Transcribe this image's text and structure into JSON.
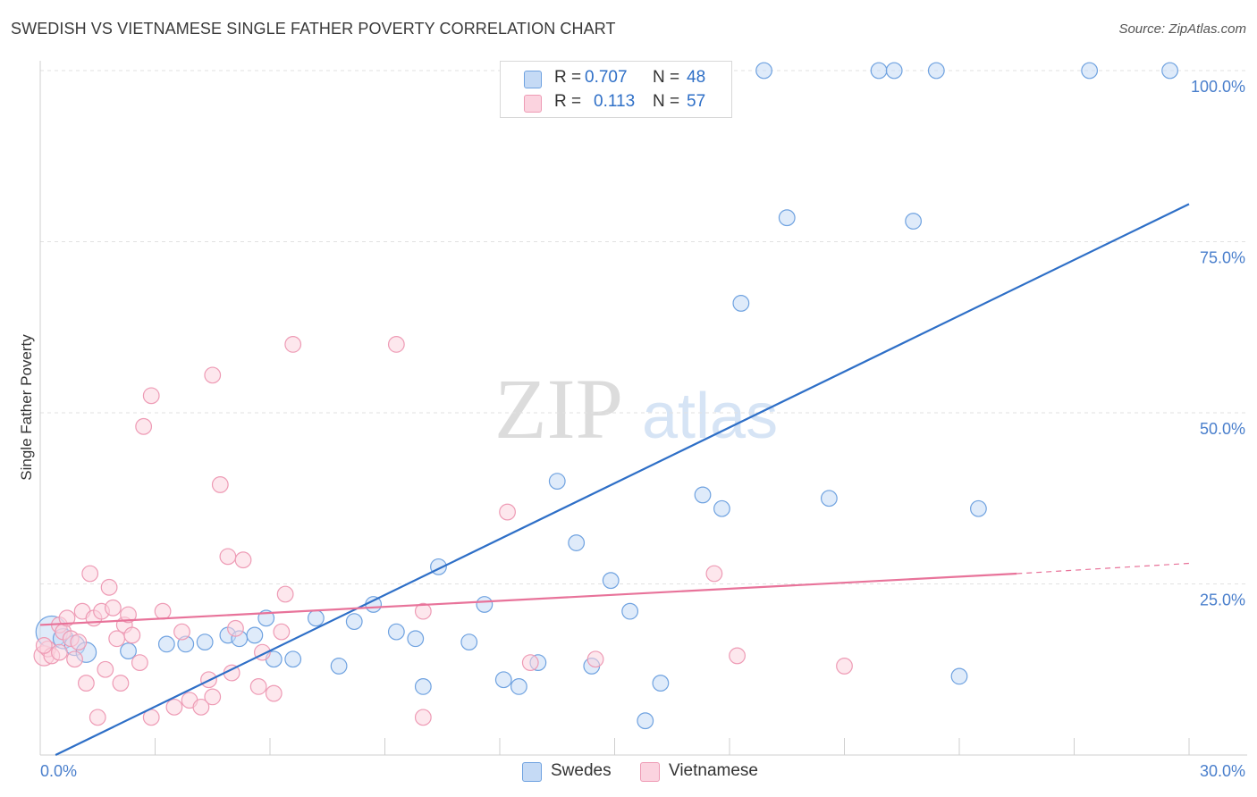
{
  "header": {
    "title": "SWEDISH VS VIETNAMESE SINGLE FATHER POVERTY CORRELATION CHART",
    "source": "Source: ZipAtlas.com"
  },
  "watermark": {
    "zip": "ZIP",
    "atlas": "atlas"
  },
  "legend": {
    "rows": [
      {
        "r_label": "R =",
        "r_value": "0.707",
        "n_label": "N =",
        "n_value": "48",
        "color": "#a9c8f0"
      },
      {
        "r_label": "R =",
        "r_value": "0.113",
        "n_label": "N =",
        "n_value": "57",
        "color": "#f7b6c8"
      }
    ]
  },
  "bottom_legend": [
    {
      "label": "Swedes",
      "color": "#a9c8f0"
    },
    {
      "label": "Vietnamese",
      "color": "#f7b6c8"
    }
  ],
  "chart_data": {
    "type": "scatter",
    "title": "SWEDISH VS VIETNAMESE SINGLE FATHER POVERTY CORRELATION CHART",
    "ylabel": "Single Father Poverty",
    "xlabel": "",
    "xlim": [
      0,
      30
    ],
    "ylim": [
      0,
      100
    ],
    "x_tick_labels": [
      "0.0%",
      "30.0%"
    ],
    "y_ticks": [
      25,
      50,
      75,
      100
    ],
    "y_tick_labels": [
      "25.0%",
      "50.0%",
      "75.0%",
      "100.0%"
    ],
    "grid": "horizontal dashed",
    "legend_position": "top-center",
    "series": [
      {
        "name": "Swedes",
        "color": "#6fa2e0",
        "fill": "#c5daf5",
        "trend_color": "#2e6fc7",
        "trend": {
          "x0": 0.4,
          "y0": 0.0,
          "x1": 30.0,
          "y1": 80.5
        },
        "points": [
          [
            0.3,
            18.0,
            22
          ],
          [
            0.6,
            17.0,
            14
          ],
          [
            0.9,
            16.0,
            14
          ],
          [
            1.2,
            15.0,
            14
          ],
          [
            2.3,
            15.2,
            11
          ],
          [
            3.3,
            16.2,
            11
          ],
          [
            3.8,
            16.2,
            11
          ],
          [
            4.3,
            16.5,
            11
          ],
          [
            4.9,
            17.5,
            11
          ],
          [
            5.6,
            17.5,
            11
          ],
          [
            5.2,
            17.0,
            11
          ],
          [
            5.9,
            20.0,
            11
          ],
          [
            6.1,
            14.0,
            11
          ],
          [
            6.6,
            14.0,
            11
          ],
          [
            7.2,
            20.0,
            11
          ],
          [
            7.8,
            13.0,
            11
          ],
          [
            8.2,
            19.5,
            11
          ],
          [
            8.7,
            22.0,
            11
          ],
          [
            9.3,
            18.0,
            11
          ],
          [
            9.8,
            17.0,
            11
          ],
          [
            10.0,
            10.0,
            11
          ],
          [
            10.4,
            27.5,
            11
          ],
          [
            11.2,
            16.5,
            11
          ],
          [
            11.6,
            22.0,
            11
          ],
          [
            12.1,
            11.0,
            11
          ],
          [
            12.5,
            10.0,
            11
          ],
          [
            13.0,
            13.5,
            11
          ],
          [
            13.5,
            40.0,
            11
          ],
          [
            14.0,
            31.0,
            11
          ],
          [
            14.4,
            13.0,
            11
          ],
          [
            14.9,
            25.5,
            11
          ],
          [
            15.4,
            21.0,
            11
          ],
          [
            15.8,
            5.0,
            11
          ],
          [
            16.2,
            10.5,
            11
          ],
          [
            17.3,
            38.0,
            11
          ],
          [
            17.8,
            36.0,
            11
          ],
          [
            18.3,
            66.0,
            11
          ],
          [
            18.9,
            100.0,
            11
          ],
          [
            19.5,
            78.5,
            11
          ],
          [
            20.6,
            37.5,
            11
          ],
          [
            21.9,
            100.0,
            11
          ],
          [
            22.3,
            100.0,
            11
          ],
          [
            22.8,
            78.0,
            11
          ],
          [
            23.4,
            100.0,
            11
          ],
          [
            24.0,
            11.5,
            11
          ],
          [
            24.5,
            36.0,
            11
          ],
          [
            27.4,
            100.0,
            11
          ],
          [
            29.5,
            100.0,
            11
          ]
        ]
      },
      {
        "name": "Vietnamese",
        "color": "#ee9bb5",
        "fill": "#fbd3df",
        "trend_color": "#e8739a",
        "trend": {
          "x0": 0.0,
          "y0": 19.0,
          "x1": 25.5,
          "y1": 26.5,
          "dash_to_x": 30.0,
          "dash_to_y": 28.0
        },
        "points": [
          [
            0.1,
            14.5,
            14
          ],
          [
            0.2,
            15.5,
            11
          ],
          [
            0.3,
            14.5,
            11
          ],
          [
            0.5,
            15.0,
            11
          ],
          [
            0.5,
            19.0,
            11
          ],
          [
            0.6,
            18.0,
            11
          ],
          [
            0.7,
            20.0,
            11
          ],
          [
            0.8,
            17.0,
            11
          ],
          [
            0.9,
            14.0,
            11
          ],
          [
            1.0,
            16.5,
            11
          ],
          [
            1.1,
            21.0,
            11
          ],
          [
            1.2,
            10.5,
            11
          ],
          [
            1.3,
            26.5,
            11
          ],
          [
            1.4,
            20.0,
            11
          ],
          [
            1.5,
            5.5,
            11
          ],
          [
            1.6,
            21.0,
            11
          ],
          [
            1.7,
            12.5,
            11
          ],
          [
            1.8,
            24.5,
            11
          ],
          [
            1.9,
            21.5,
            11
          ],
          [
            2.0,
            17.0,
            11
          ],
          [
            2.1,
            10.5,
            11
          ],
          [
            2.2,
            19.0,
            11
          ],
          [
            2.3,
            20.5,
            11
          ],
          [
            2.4,
            17.5,
            11
          ],
          [
            2.6,
            13.5,
            11
          ],
          [
            2.7,
            48.0,
            11
          ],
          [
            2.9,
            52.5,
            11
          ],
          [
            2.9,
            5.5,
            11
          ],
          [
            3.2,
            21.0,
            11
          ],
          [
            3.5,
            7.0,
            11
          ],
          [
            3.7,
            18.0,
            11
          ],
          [
            3.9,
            8.0,
            11
          ],
          [
            4.2,
            7.0,
            11
          ],
          [
            4.4,
            11.0,
            11
          ],
          [
            4.5,
            8.5,
            11
          ],
          [
            4.5,
            55.5,
            11
          ],
          [
            4.7,
            39.5,
            11
          ],
          [
            4.9,
            29.0,
            11
          ],
          [
            5.0,
            12.0,
            11
          ],
          [
            5.1,
            18.5,
            11
          ],
          [
            5.3,
            28.5,
            11
          ],
          [
            5.7,
            10.0,
            11
          ],
          [
            5.8,
            15.0,
            11
          ],
          [
            6.1,
            9.0,
            11
          ],
          [
            6.3,
            18.0,
            11
          ],
          [
            6.4,
            23.5,
            11
          ],
          [
            6.6,
            60.0,
            11
          ],
          [
            9.3,
            60.0,
            11
          ],
          [
            10.0,
            21.0,
            11
          ],
          [
            10.0,
            5.5,
            11
          ],
          [
            12.2,
            35.5,
            11
          ],
          [
            12.8,
            13.5,
            11
          ],
          [
            14.5,
            14.0,
            11
          ],
          [
            17.6,
            26.5,
            11
          ],
          [
            18.2,
            14.5,
            11
          ],
          [
            21.0,
            13.0,
            11
          ],
          [
            0.1,
            16.0,
            11
          ]
        ]
      }
    ]
  }
}
